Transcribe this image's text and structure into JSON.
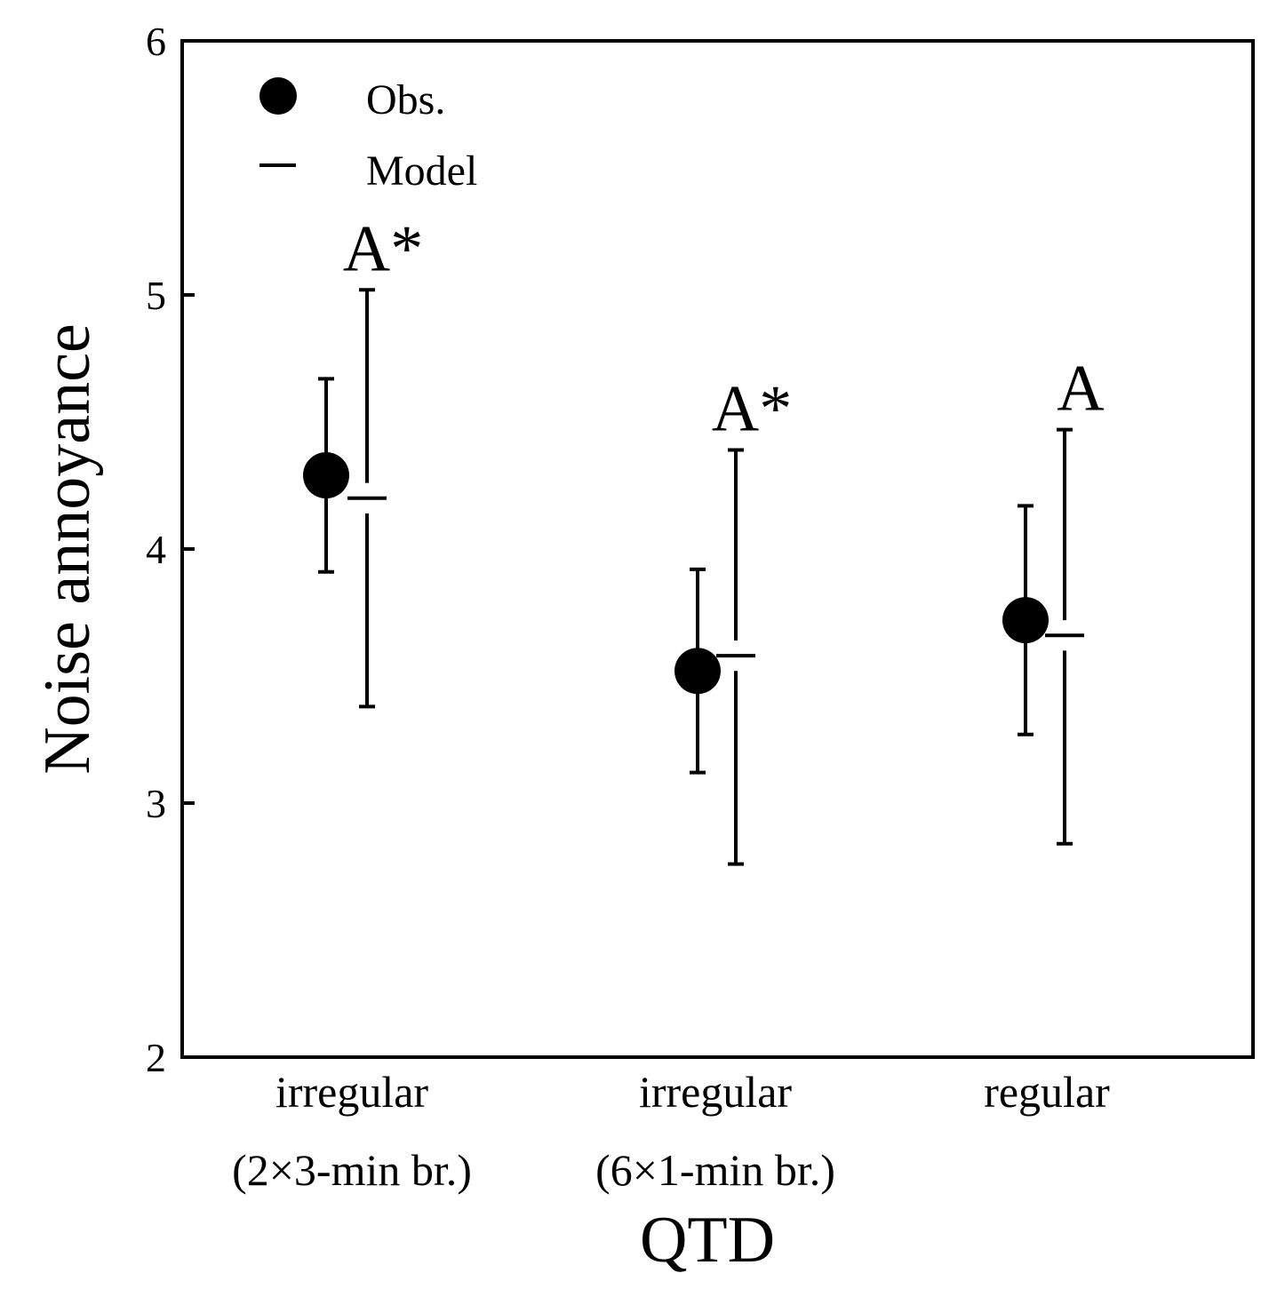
{
  "chart_data": {
    "type": "scatter",
    "title": "",
    "xlabel": "QTD",
    "ylabel": "Noise annoyance",
    "ylim": [
      2,
      6
    ],
    "yticks": [
      2,
      3,
      4,
      5,
      6
    ],
    "categories": [
      [
        "irregular",
        "(2×3-min br.)"
      ],
      [
        "irregular",
        "(6×1-min br.)"
      ],
      [
        "regular"
      ]
    ],
    "series": [
      {
        "name": "Obs.",
        "marker": "filled-circle",
        "values": [
          4.29,
          3.52,
          3.72
        ],
        "lower": [
          3.91,
          3.12,
          3.27
        ],
        "upper": [
          4.67,
          3.92,
          4.17
        ]
      },
      {
        "name": "Model",
        "marker": "dash",
        "values": [
          4.2,
          3.58,
          3.66
        ],
        "lower": [
          3.38,
          2.76,
          2.84
        ],
        "upper": [
          5.02,
          4.39,
          4.47
        ]
      }
    ],
    "annotations": [
      "A*",
      "A*",
      "A"
    ],
    "legend_position": "top-left",
    "grid": false
  }
}
